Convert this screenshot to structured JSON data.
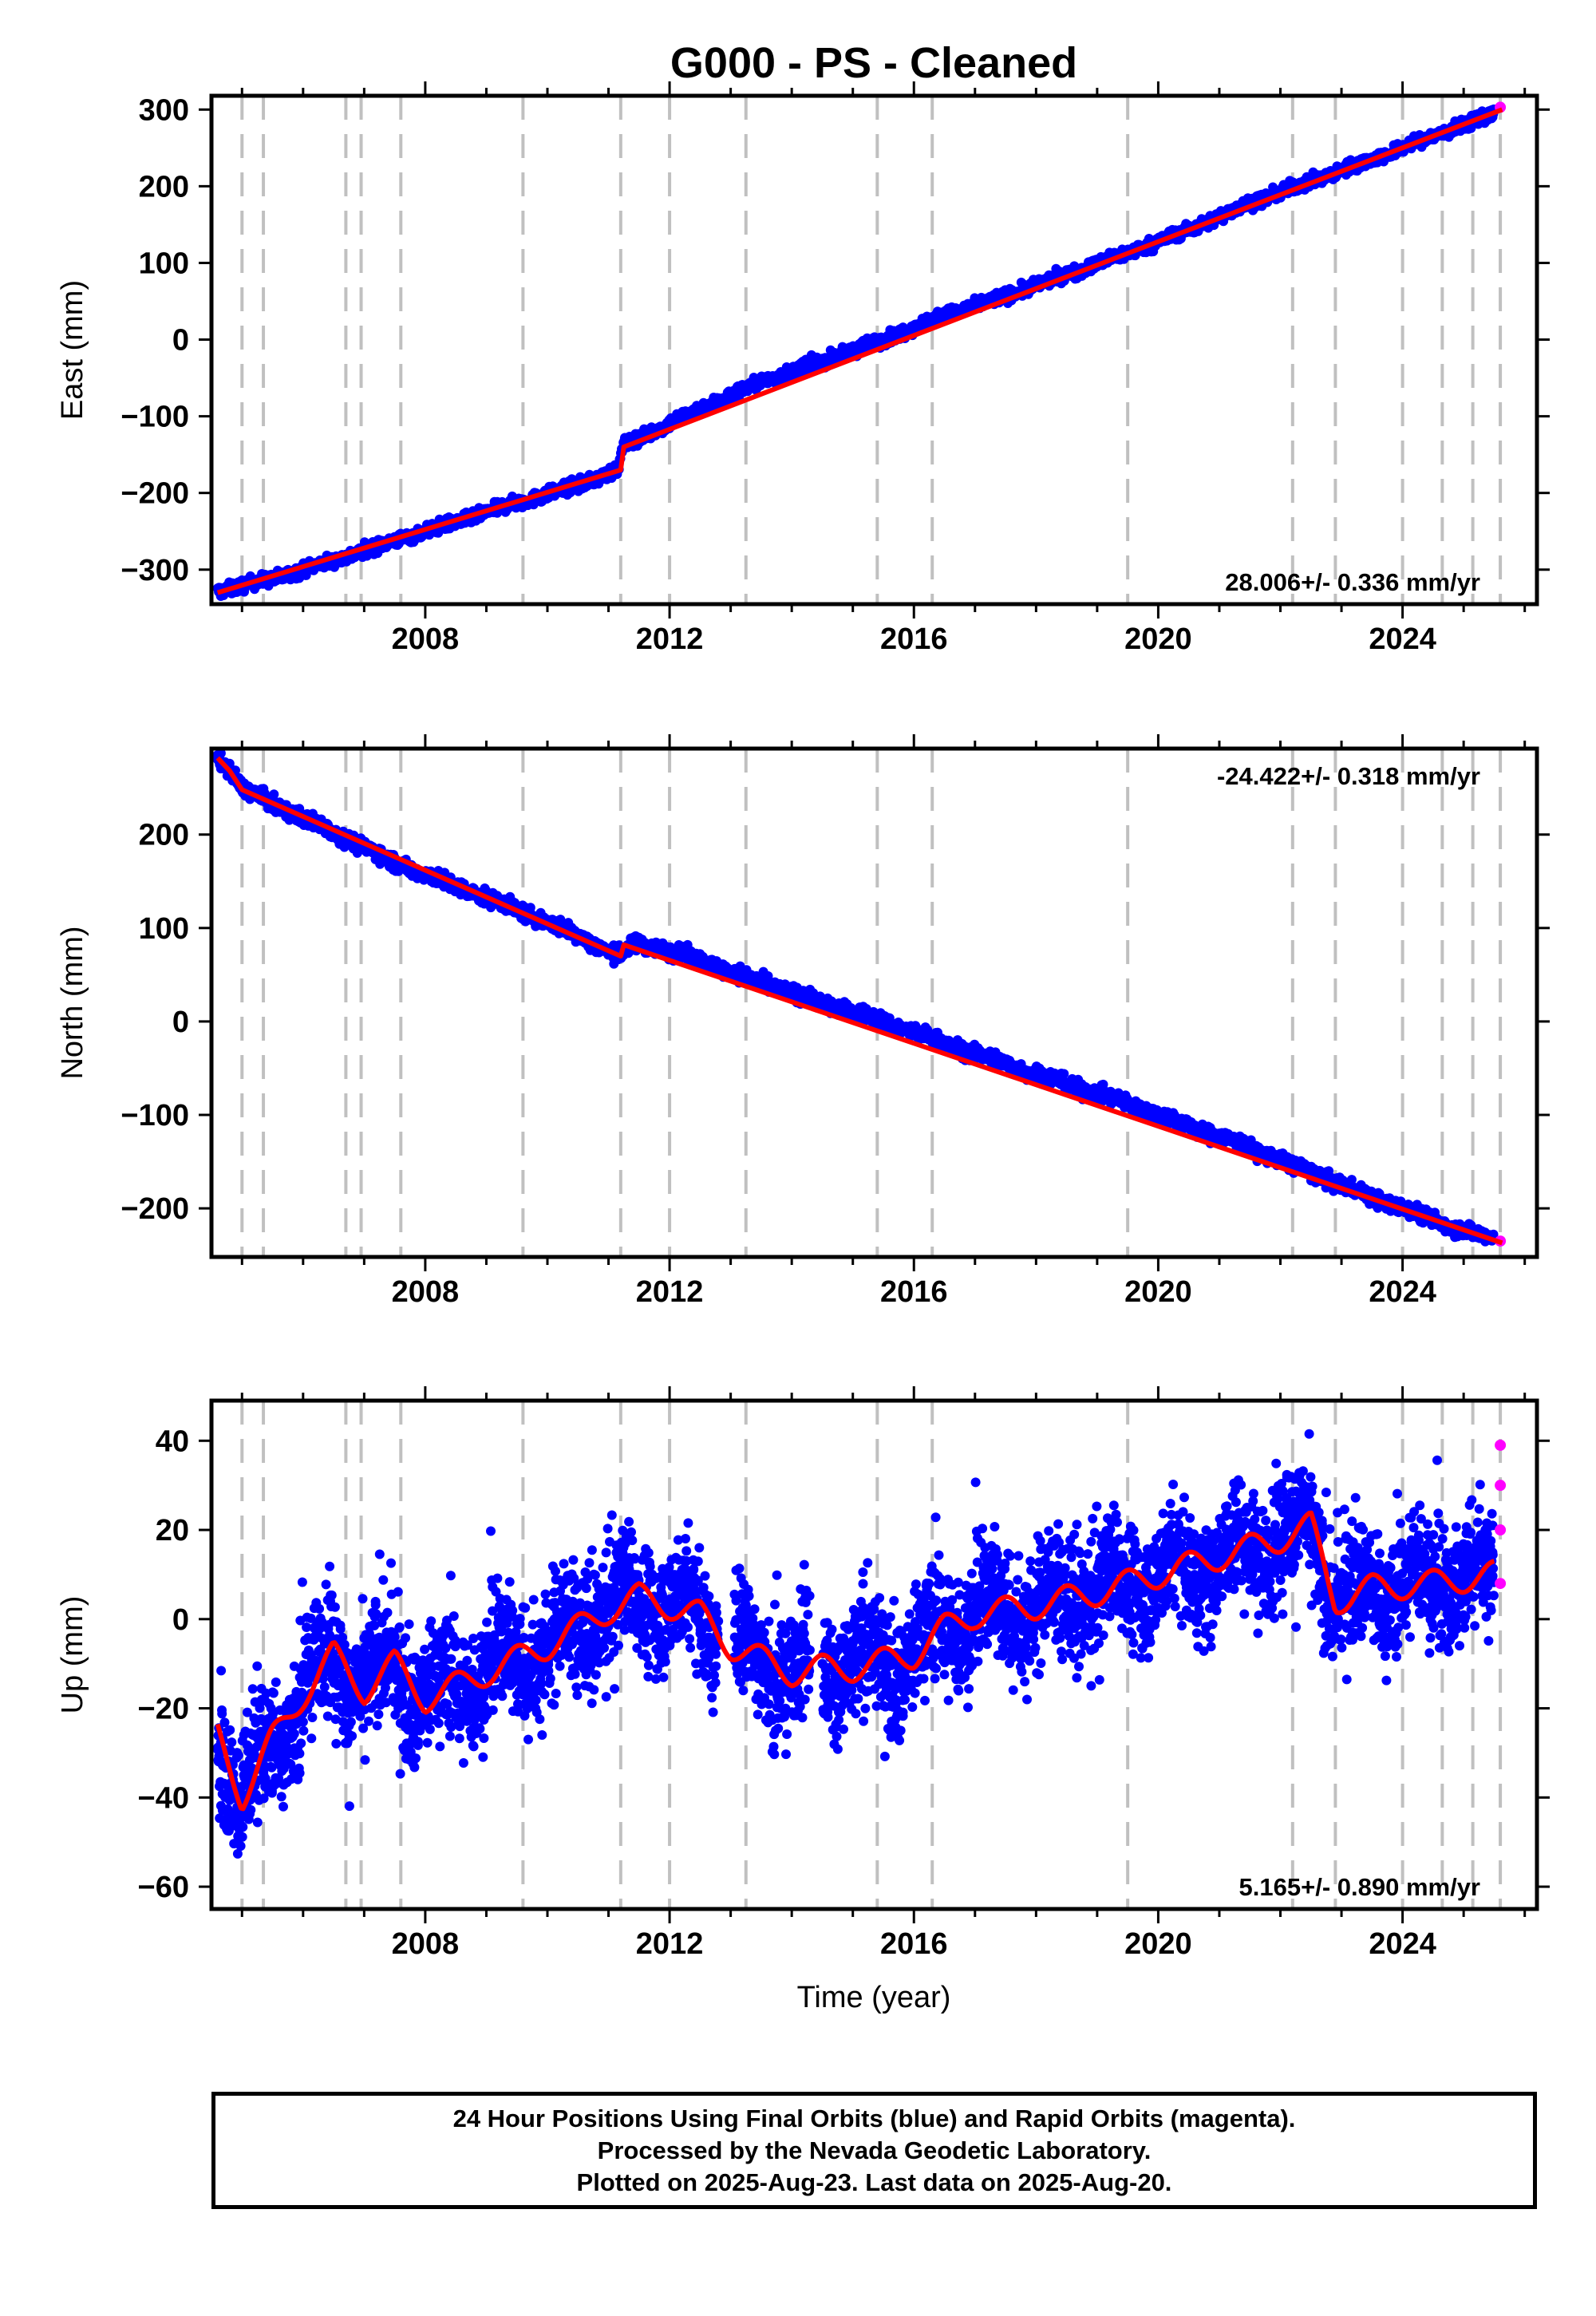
{
  "title": "G000  - PS - Cleaned",
  "xlabel": "Time (year)",
  "footer": {
    "line1": "24 Hour Positions Using Final Orbits (blue) and Rapid Orbits (magenta).",
    "line2": "Processed by the Nevada Geodetic Laboratory.",
    "line3": "Plotted on 2025-Aug-23. Last data on 2025-Aug-20."
  },
  "colors": {
    "final_orbits": "#0000ff",
    "rapid_orbits": "#ff00ff",
    "model_fit": "#ff0000",
    "event_lines": "#c0c0c0"
  },
  "chart_data": [
    {
      "type": "scatter",
      "ylabel": "East (mm)",
      "rate_label": "28.006+/- 0.336 mm/yr",
      "rate_position": "bottom-right",
      "xlim": [
        2004.5,
        2026.2
      ],
      "ylim": [
        -345,
        318
      ],
      "xticks": [
        2008,
        2012,
        2016,
        2020,
        2024
      ],
      "yticks": [
        -300,
        -200,
        -100,
        0,
        100,
        200,
        300
      ],
      "yticklabels": [
        "−300",
        "−200",
        "−100",
        "0",
        "100",
        "200",
        "300"
      ],
      "grid": false,
      "event_lines": [
        2005.0,
        2005.35,
        2006.7,
        2006.95,
        2007.6,
        2009.6,
        2011.2,
        2012.0,
        2013.25,
        2015.4,
        2016.3,
        2019.5,
        2022.2,
        2022.9,
        2024.0,
        2024.65,
        2025.15,
        2025.6
      ],
      "series": [
        {
          "name": "Final Orbits",
          "color": "#0000ff",
          "x": [
            2004.6,
            2005.5,
            2006.5,
            2007.5,
            2008.5,
            2009.5,
            2010.5,
            2011.15,
            2011.25,
            2012.5,
            2013.5,
            2014.5,
            2015.5,
            2016.5,
            2017.5,
            2018.5,
            2019.5,
            2020.5,
            2021.5,
            2022.5,
            2023.5,
            2024.5,
            2025.5
          ],
          "y": [
            -328,
            -312,
            -288,
            -262,
            -238,
            -213,
            -190,
            -170,
            -138,
            -90,
            -55,
            -28,
            0,
            32,
            57,
            85,
            113,
            143,
            178,
            206,
            235,
            265,
            295
          ]
        },
        {
          "name": "Rapid Orbits",
          "color": "#ff00ff",
          "x": [
            2025.6
          ],
          "y": [
            303
          ]
        }
      ],
      "fit": {
        "color": "#ff0000",
        "x": [
          2004.6,
          2011.2,
          2011.25,
          2025.63
        ],
        "y": [
          -330,
          -170,
          -140,
          300
        ]
      }
    },
    {
      "type": "scatter",
      "ylabel": "North (mm)",
      "rate_label": "-24.422+/- 0.318 mm/yr",
      "rate_position": "top-right",
      "xlim": [
        2004.5,
        2026.2
      ],
      "ylim": [
        -252,
        292
      ],
      "xticks": [
        2008,
        2012,
        2016,
        2020,
        2024
      ],
      "yticks": [
        -200,
        -100,
        0,
        100,
        200
      ],
      "yticklabels": [
        "−200",
        "−100",
        "0",
        "100",
        "200"
      ],
      "grid": false,
      "event_lines": [
        2005.0,
        2005.35,
        2006.7,
        2006.95,
        2007.6,
        2009.6,
        2011.2,
        2012.0,
        2013.25,
        2015.4,
        2016.3,
        2019.5,
        2022.2,
        2022.9,
        2024.0,
        2024.65,
        2025.15,
        2025.6
      ],
      "series": [
        {
          "name": "Final Orbits",
          "color": "#0000ff",
          "x": [
            2004.6,
            2004.8,
            2005.0,
            2005.5,
            2006.5,
            2007.5,
            2008.5,
            2009.5,
            2010.5,
            2011.15,
            2011.5,
            2012.5,
            2013.5,
            2014.5,
            2015.5,
            2016.5,
            2017.5,
            2018.5,
            2019.5,
            2020.5,
            2021.5,
            2022.5,
            2023.5,
            2024.5,
            2025.5
          ],
          "y": [
            281,
            270,
            250,
            232,
            203,
            170,
            145,
            120,
            92,
            70,
            85,
            65,
            42,
            20,
            0,
            -23,
            -45,
            -67,
            -88,
            -112,
            -135,
            -162,
            -188,
            -212,
            -234
          ]
        },
        {
          "name": "Rapid Orbits",
          "color": "#ff00ff",
          "x": [
            2025.6
          ],
          "y": [
            -235
          ]
        }
      ],
      "fit": {
        "color": "#ff0000",
        "x": [
          2004.6,
          2004.8,
          2005.0,
          2011.2,
          2011.25,
          2025.63
        ],
        "y": [
          282,
          268,
          248,
          70,
          82,
          -237
        ]
      }
    },
    {
      "type": "scatter",
      "ylabel": "Up (mm)",
      "rate_label": "5.165+/- 0.890 mm/yr",
      "rate_position": "bottom-right",
      "xlim": [
        2004.5,
        2026.2
      ],
      "ylim": [
        -65,
        49
      ],
      "xticks": [
        2008,
        2012,
        2016,
        2020,
        2024
      ],
      "yticks": [
        -60,
        -40,
        -20,
        0,
        20,
        40
      ],
      "yticklabels": [
        "−60",
        "−40",
        "−20",
        "0",
        "20",
        "40"
      ],
      "grid": false,
      "event_lines": [
        2005.0,
        2005.35,
        2006.7,
        2006.95,
        2007.6,
        2009.6,
        2011.2,
        2012.0,
        2013.25,
        2015.4,
        2016.3,
        2019.5,
        2022.2,
        2022.9,
        2024.0,
        2024.65,
        2025.15,
        2025.6
      ],
      "series": [
        {
          "name": "Final Orbits",
          "color": "#0000ff",
          "x": [
            2004.6,
            2005.0,
            2005.5,
            2006.0,
            2006.5,
            2007.0,
            2007.5,
            2008.0,
            2009.0,
            2010.0,
            2011.0,
            2011.5,
            2012.5,
            2013.0,
            2013.5,
            2014.0,
            2014.5,
            2015.0,
            2016.0,
            2016.5,
            2017.0,
            2018.0,
            2019.0,
            2020.0,
            2021.0,
            2022.0,
            2022.5,
            2022.9,
            2023.5,
            2024.5,
            2025.5
          ],
          "y": [
            -27,
            -40,
            -28,
            -16,
            -8,
            -15,
            -10,
            -18,
            -12,
            -6,
            2,
            5,
            2,
            -6,
            -9,
            -12,
            -10,
            -11,
            -8,
            -2,
            1,
            3,
            6,
            10,
            14,
            18,
            21,
            4,
            7,
            8,
            10
          ]
        },
        {
          "name": "Rapid Orbits",
          "color": "#ff00ff",
          "x": [
            2025.6,
            2025.6,
            2025.6,
            2025.6
          ],
          "y": [
            8,
            20,
            30,
            39
          ]
        }
      ],
      "fit": {
        "color": "#ff0000",
        "x": [
          2004.6,
          2005.0,
          2005.5,
          2006.0,
          2006.5,
          2007.0,
          2007.5,
          2008.0,
          2009.0,
          2010.0,
          2011.0,
          2011.5,
          2012.5,
          2013.0,
          2013.5,
          2014.0,
          2014.5,
          2015.0,
          2016.0,
          2016.5,
          2017.0,
          2018.0,
          2019.0,
          2020.0,
          2021.0,
          2022.0,
          2022.5,
          2022.9,
          2023.5,
          2024.5,
          2025.5
        ],
        "y": [
          -26,
          -40,
          -27,
          -17,
          -8,
          -16,
          -10,
          -18,
          -12,
          -6,
          2,
          5,
          1,
          -6,
          -9,
          -12,
          -11,
          -11,
          -8,
          -2,
          1,
          3,
          6,
          10,
          14,
          18,
          21,
          4,
          7,
          8,
          10
        ]
      }
    }
  ]
}
